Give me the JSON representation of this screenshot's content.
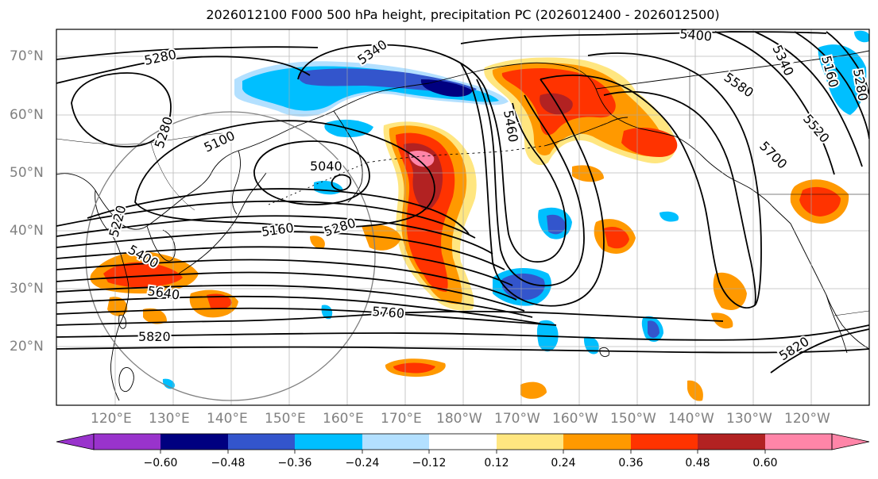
{
  "title": "2026012100 F000 500 hPa height, precipitation PC (2026012400 - 2026012500)",
  "lat_labels": [
    "70°N",
    "60°N",
    "50°N",
    "40°N",
    "30°N",
    "20°N"
  ],
  "lon_labels": [
    "120°E",
    "130°E",
    "140°E",
    "150°E",
    "160°E",
    "170°E",
    "180°W",
    "170°W",
    "160°W",
    "150°W",
    "140°W",
    "130°W",
    "120°W"
  ],
  "contour_labels": [
    "5280",
    "5280",
    "5340",
    "5400",
    "5100",
    "5040",
    "5220",
    "5400",
    "5640",
    "5820",
    "5160",
    "5280",
    "5760",
    "5460",
    "5580",
    "5520",
    "5700",
    "5820",
    "5340",
    "5160",
    "5280"
  ],
  "colorbar": {
    "ticks": [
      "−0.60",
      "−0.48",
      "−0.36",
      "−0.24",
      "−0.12",
      "0.12",
      "0.24",
      "0.36",
      "0.48",
      "0.60"
    ],
    "colors": [
      "#9933cc",
      "#000080",
      "#3355cc",
      "#00bfff",
      "#b3e0ff",
      "#ffffff",
      "#ffe680",
      "#ff9900",
      "#ff3300",
      "#b22222",
      "#ff85a8"
    ]
  },
  "colors": {
    "contour": "#000000",
    "grid": "#a9a9a9",
    "circle": "#808080"
  }
}
